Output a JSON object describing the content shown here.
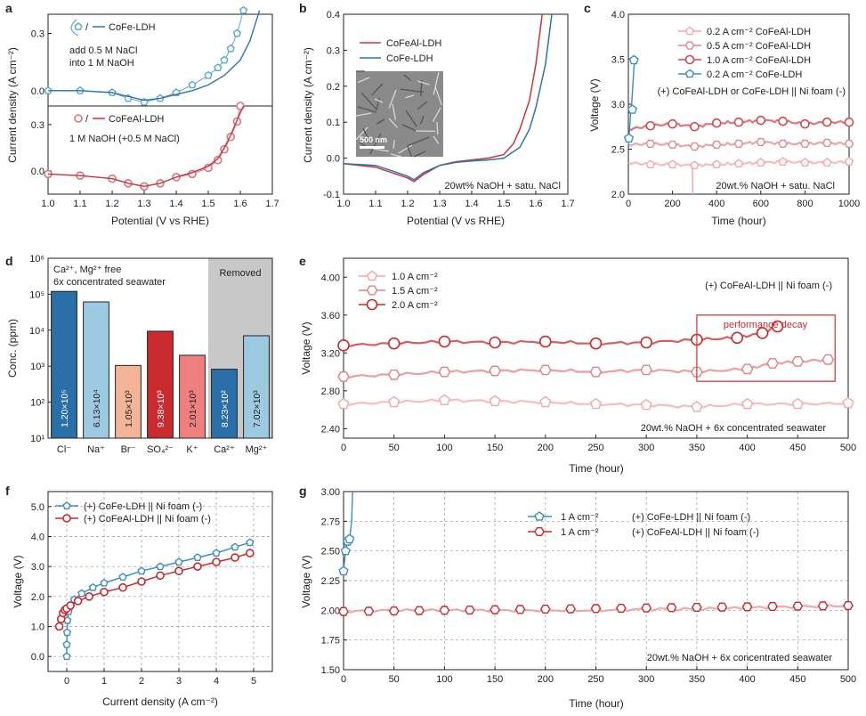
{
  "chart_data": [
    {
      "panel": "a",
      "type": "line",
      "xlabel": "Potential (V vs RHE)",
      "ylabel": "Current density (A cm⁻²)",
      "xlim": [
        1.0,
        1.7
      ],
      "xticks": [
        "1.0",
        "1.1",
        "1.2",
        "1.3",
        "1.4",
        "1.5",
        "1.6",
        "1.7"
      ],
      "subplots": [
        {
          "ylim": [
            -0.08,
            0.4
          ],
          "yticks": [
            "0.0",
            "0.3"
          ],
          "legend": "CoFe-LDH",
          "note_lines": [
            "add 0.5 M NaCl",
            "into 1 M NaOH"
          ],
          "series": [
            {
              "name": "with NaCl (markers)",
              "color": "#5ba6c9",
              "marker": "pentagon",
              "x": [
                1.0,
                1.1,
                1.2,
                1.25,
                1.3,
                1.35,
                1.4,
                1.45,
                1.5,
                1.53,
                1.55,
                1.57,
                1.59,
                1.61
              ],
              "y": [
                0.0,
                0.0,
                -0.01,
                -0.04,
                -0.06,
                -0.04,
                -0.01,
                0.03,
                0.08,
                0.12,
                0.16,
                0.22,
                0.3,
                0.42
              ]
            },
            {
              "name": "without NaCl (line)",
              "color": "#2e74a8",
              "marker": "none",
              "x": [
                1.0,
                1.1,
                1.2,
                1.25,
                1.3,
                1.35,
                1.4,
                1.45,
                1.5,
                1.55,
                1.6,
                1.63,
                1.66
              ],
              "y": [
                0.0,
                0.0,
                -0.01,
                -0.03,
                -0.05,
                -0.04,
                -0.02,
                0.0,
                0.03,
                0.08,
                0.16,
                0.26,
                0.42
              ]
            }
          ]
        },
        {
          "ylim": [
            -0.15,
            0.42
          ],
          "yticks": [
            "0.0",
            "0.3"
          ],
          "legend": "CoFeAl-LDH",
          "note_lines": [
            "1 M NaOH (+0.5 M NaCl)"
          ],
          "series": [
            {
              "name": "with NaCl (markers)",
              "color": "#d9747a",
              "marker": "circle",
              "x": [
                1.0,
                1.1,
                1.2,
                1.25,
                1.3,
                1.35,
                1.4,
                1.45,
                1.5,
                1.53,
                1.55,
                1.57,
                1.59,
                1.6
              ],
              "y": [
                -0.02,
                -0.03,
                -0.05,
                -0.08,
                -0.1,
                -0.08,
                -0.04,
                -0.02,
                0.02,
                0.07,
                0.14,
                0.22,
                0.32,
                0.42
              ]
            },
            {
              "name": "without NaCl (line)",
              "color": "#c8353c",
              "marker": "none",
              "x": [
                1.0,
                1.1,
                1.2,
                1.25,
                1.3,
                1.35,
                1.4,
                1.45,
                1.5,
                1.53,
                1.55,
                1.57,
                1.59,
                1.61
              ],
              "y": [
                -0.02,
                -0.03,
                -0.05,
                -0.08,
                -0.1,
                -0.08,
                -0.04,
                -0.01,
                0.03,
                0.08,
                0.15,
                0.23,
                0.33,
                0.42
              ]
            }
          ]
        }
      ]
    },
    {
      "panel": "b",
      "type": "line",
      "xlabel": "Potential (V vs RHE)",
      "ylabel": "Current density (A cm⁻²)",
      "xlim": [
        1.0,
        1.7
      ],
      "ylim": [
        -0.1,
        0.4
      ],
      "xticks": [
        "1.0",
        "1.1",
        "1.2",
        "1.3",
        "1.4",
        "1.5",
        "1.6",
        "1.7"
      ],
      "yticks": [
        "-0.1",
        "0.0",
        "0.1",
        "0.2",
        "0.3",
        "0.4"
      ],
      "annotation": "20wt% NaOH + satu. NaCl",
      "inset_label": "500 nm",
      "series": [
        {
          "name": "CoFeAl-LDH",
          "color": "#c8353c",
          "x": [
            1.0,
            1.1,
            1.15,
            1.2,
            1.22,
            1.25,
            1.3,
            1.35,
            1.4,
            1.45,
            1.5,
            1.53,
            1.55,
            1.58,
            1.6,
            1.62
          ],
          "y": [
            -0.015,
            -0.025,
            -0.04,
            -0.055,
            -0.065,
            -0.045,
            -0.02,
            -0.01,
            -0.005,
            0.0,
            0.01,
            0.04,
            0.08,
            0.16,
            0.26,
            0.4
          ]
        },
        {
          "name": "CoFe-LDH",
          "color": "#2e74a8",
          "x": [
            1.0,
            1.1,
            1.15,
            1.2,
            1.22,
            1.25,
            1.3,
            1.35,
            1.4,
            1.45,
            1.5,
            1.55,
            1.58,
            1.6,
            1.63,
            1.65
          ],
          "y": [
            -0.015,
            -0.02,
            -0.035,
            -0.05,
            -0.06,
            -0.04,
            -0.02,
            -0.012,
            -0.008,
            -0.005,
            0.0,
            0.03,
            0.08,
            0.14,
            0.26,
            0.4
          ]
        }
      ]
    },
    {
      "panel": "c",
      "type": "line",
      "xlabel": "Time (hour)",
      "ylabel": "Voltage (V)",
      "xlim": [
        0,
        1000
      ],
      "ylim": [
        2.0,
        4.0
      ],
      "xticks": [
        "0",
        "200",
        "400",
        "600",
        "800",
        "1000"
      ],
      "yticks": [
        "2.0",
        "2.5",
        "3.0",
        "3.5",
        "4.0"
      ],
      "annotations": [
        "(+) CoFeAl-LDH or CoFe-LDH || Ni foam (-)",
        "20wt.% NaOH + satu. NaCl"
      ],
      "series": [
        {
          "name": "0.2 A cm⁻² CoFeAl-LDH",
          "color": "#f0a8a8",
          "marker": "pentagon",
          "x": [
            0,
            100,
            200,
            300,
            400,
            500,
            600,
            700,
            800,
            900,
            1000
          ],
          "y": [
            2.35,
            2.33,
            2.33,
            2.32,
            2.33,
            2.34,
            2.35,
            2.36,
            2.35,
            2.35,
            2.36
          ]
        },
        {
          "name": "0.5 A cm⁻² CoFeAl-LDH",
          "color": "#e08a8a",
          "marker": "hexagon",
          "x": [
            0,
            100,
            200,
            300,
            400,
            500,
            600,
            700,
            800,
            900,
            1000
          ],
          "y": [
            2.55,
            2.56,
            2.55,
            2.53,
            2.55,
            2.56,
            2.58,
            2.56,
            2.56,
            2.57,
            2.56
          ]
        },
        {
          "name": "1.0 A cm⁻² CoFeAl-LDH",
          "color": "#d04a50",
          "marker": "circle",
          "x": [
            0,
            100,
            200,
            300,
            400,
            500,
            600,
            700,
            800,
            900,
            1000
          ],
          "y": [
            2.72,
            2.76,
            2.78,
            2.75,
            2.79,
            2.8,
            2.82,
            2.81,
            2.78,
            2.8,
            2.8
          ]
        },
        {
          "name": "0.2 A cm⁻² CoFe-LDH",
          "color": "#3d8fbd",
          "marker": "pentagon",
          "x": [
            0,
            5,
            10,
            15,
            20,
            25,
            30
          ],
          "y": [
            2.55,
            2.7,
            2.9,
            3.0,
            3.2,
            3.4,
            3.5
          ]
        }
      ]
    },
    {
      "panel": "d",
      "type": "bar",
      "ylabel": "Conc. (ppm)",
      "yscale": "log",
      "ylim": [
        10,
        1000000
      ],
      "yticks": [
        "10¹",
        "10²",
        "10³",
        "10⁴",
        "10⁵",
        "10⁶"
      ],
      "title_lines": [
        "Ca²⁺, Mg²⁺ free",
        "6x concentrated seawater"
      ],
      "removed_label": "Removed",
      "categories": [
        "Cl⁻",
        "Na⁺",
        "Br⁻",
        "SO₄²⁻",
        "K⁺",
        "Ca²⁺",
        "Mg²⁺"
      ],
      "values": [
        120000,
        61300,
        1050,
        9380,
        2010,
        823,
        7020
      ],
      "value_labels": [
        "1.20×10⁵",
        "6.13×10⁴",
        "1.05×10³",
        "9.38×10³",
        "2.01×10³",
        "8.23×10²",
        "7.02×10³"
      ],
      "colors": [
        "#2b6fa8",
        "#9ecae1",
        "#f4b498",
        "#c82a2e",
        "#f08080",
        "#2b6fa8",
        "#9ecae1"
      ]
    },
    {
      "panel": "e",
      "type": "line",
      "xlabel": "Time (hour)",
      "ylabel": "Voltage (V)",
      "xlim": [
        0,
        500
      ],
      "ylim": [
        2.3,
        4.2
      ],
      "xticks": [
        "0",
        "50",
        "100",
        "150",
        "200",
        "250",
        "300",
        "350",
        "400",
        "450",
        "500"
      ],
      "yticks": [
        "2.40",
        "2.80",
        "3.20",
        "3.60",
        "4.00"
      ],
      "annotations": [
        "(+) CoFeAl-LDH || Ni foam (-)",
        "20wt.% NaOH + 6x concentrated seawater",
        "performance decay"
      ],
      "series": [
        {
          "name": "1.0 A cm⁻²",
          "color": "#f0a8a8",
          "marker": "pentagon",
          "x": [
            0,
            50,
            100,
            150,
            200,
            250,
            300,
            350,
            400,
            450,
            500
          ],
          "y": [
            2.66,
            2.68,
            2.7,
            2.69,
            2.68,
            2.66,
            2.65,
            2.63,
            2.66,
            2.66,
            2.67
          ]
        },
        {
          "name": "1.5 A cm⁻²",
          "color": "#e08080",
          "marker": "hexagon",
          "x": [
            0,
            50,
            100,
            150,
            200,
            250,
            300,
            350,
            400,
            425,
            450,
            480
          ],
          "y": [
            2.95,
            2.97,
            3.0,
            3.01,
            3.02,
            3.0,
            3.02,
            3.0,
            3.03,
            3.09,
            3.11,
            3.13
          ]
        },
        {
          "name": "2.0 A cm⁻²",
          "color": "#c82a2e",
          "marker": "circle",
          "x": [
            0,
            50,
            100,
            150,
            200,
            250,
            300,
            350,
            390,
            415,
            430
          ],
          "y": [
            3.28,
            3.3,
            3.32,
            3.31,
            3.32,
            3.3,
            3.31,
            3.34,
            3.36,
            3.41,
            3.48
          ]
        }
      ]
    },
    {
      "panel": "f",
      "type": "line",
      "xlabel": "Current density (A cm⁻²)",
      "ylabel": "Voltage (V)",
      "xlim": [
        -0.5,
        5.5
      ],
      "ylim": [
        -0.5,
        5.5
      ],
      "xticks": [
        "0",
        "1",
        "2",
        "3",
        "4",
        "5"
      ],
      "yticks": [
        "0.0",
        "1.0",
        "2.0",
        "3.0",
        "4.0",
        "5.0"
      ],
      "series": [
        {
          "name": "(+) CoFe-LDH || Ni foam (-)",
          "color": "#3d8fbd",
          "marker": "pentagon",
          "x": [
            0,
            0,
            0.01,
            0.02,
            0.05,
            0.1,
            0.2,
            0.4,
            0.7,
            1.0,
            1.5,
            2.0,
            2.5,
            3.0,
            3.5,
            4.0,
            4.5,
            4.9
          ],
          "y": [
            0.0,
            0.4,
            0.8,
            1.2,
            1.5,
            1.7,
            1.9,
            2.1,
            2.3,
            2.45,
            2.65,
            2.85,
            3.0,
            3.15,
            3.3,
            3.45,
            3.65,
            3.8
          ]
        },
        {
          "name": "(+) CoFeAl-LDH || Ni foam (-)",
          "color": "#c82a2e",
          "marker": "circle",
          "x": [
            -0.2,
            -0.15,
            -0.1,
            -0.05,
            0,
            0.1,
            0.3,
            0.6,
            1.0,
            1.5,
            2.0,
            2.5,
            3.0,
            3.5,
            4.0,
            4.5,
            4.9
          ],
          "y": [
            1.0,
            1.25,
            1.45,
            1.55,
            1.6,
            1.7,
            1.85,
            2.0,
            2.15,
            2.3,
            2.5,
            2.7,
            2.85,
            3.0,
            3.15,
            3.3,
            3.45
          ]
        }
      ]
    },
    {
      "panel": "g",
      "type": "line",
      "xlabel": "Time (hour)",
      "ylabel": "Voltage (V)",
      "xlim": [
        0,
        500
      ],
      "ylim": [
        1.5,
        3.0
      ],
      "xticks": [
        "0",
        "50",
        "100",
        "150",
        "200",
        "250",
        "300",
        "350",
        "400",
        "450",
        "500"
      ],
      "yticks": [
        "1.50",
        "1.75",
        "2.00",
        "2.25",
        "2.50",
        "2.75",
        "3.00"
      ],
      "annotation": "20wt.% NaOH + 6x concentrated seawater",
      "series": [
        {
          "name": "1 A cm⁻²",
          "desc": "(+) CoFe-LDH || Ni foam (-)",
          "color": "#3d8fbd",
          "marker": "pentagon",
          "x": [
            0,
            2,
            4,
            6,
            8,
            9
          ],
          "y": [
            2.33,
            2.5,
            2.58,
            2.6,
            2.75,
            3.0
          ]
        },
        {
          "name": "1 A cm⁻²",
          "desc": "(+) CoFeAl-LDH || Ni foam (-)",
          "color": "#c82a2e",
          "marker": "hexagon",
          "x": [
            0,
            50,
            100,
            150,
            200,
            250,
            300,
            350,
            400,
            450,
            500
          ],
          "y": [
            1.99,
            2.0,
            2.0,
            2.0,
            2.0,
            2.0,
            2.01,
            2.01,
            2.02,
            2.03,
            2.04
          ]
        }
      ]
    }
  ]
}
